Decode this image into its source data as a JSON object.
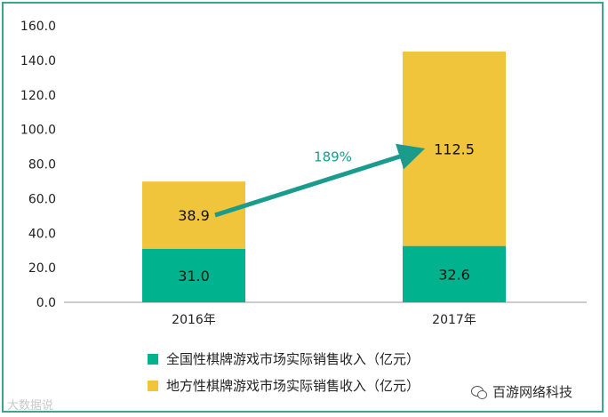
{
  "chart_data": {
    "type": "bar",
    "stacked": true,
    "categories": [
      "2016年",
      "2017年"
    ],
    "series": [
      {
        "name": "全国性棋牌游戏市场实际销售收入（亿元）",
        "values": [
          31.0,
          32.6
        ],
        "color": "#00b38e"
      },
      {
        "name": "地方性棋牌游戏市场实际销售收入（亿元）",
        "values": [
          38.9,
          112.5
        ],
        "color": "#f0c53c"
      }
    ],
    "ylim": [
      0,
      160
    ],
    "yticks": [
      "0.0",
      "20.0",
      "40.0",
      "60.0",
      "80.0",
      "100.0",
      "120.0",
      "140.0",
      "160.0"
    ],
    "data_labels": [
      [
        "31.0",
        "32.6"
      ],
      [
        "38.9",
        "112.5"
      ]
    ],
    "annotation": {
      "text": "189%",
      "from": "2016年",
      "to": "2017年",
      "color": "#1a9b8b"
    },
    "legend_position": "bottom",
    "grid": false
  },
  "legend": {
    "items": [
      {
        "label": "全国性棋牌游戏市场实际销售收入（亿元）",
        "color": "#00b38e"
      },
      {
        "label": "地方性棋牌游戏市场实际销售收入（亿元）",
        "color": "#f0c53c"
      }
    ]
  },
  "watermark": {
    "left": "大数据说",
    "right": "百游网络科技",
    "icon": "wechat-icon"
  }
}
